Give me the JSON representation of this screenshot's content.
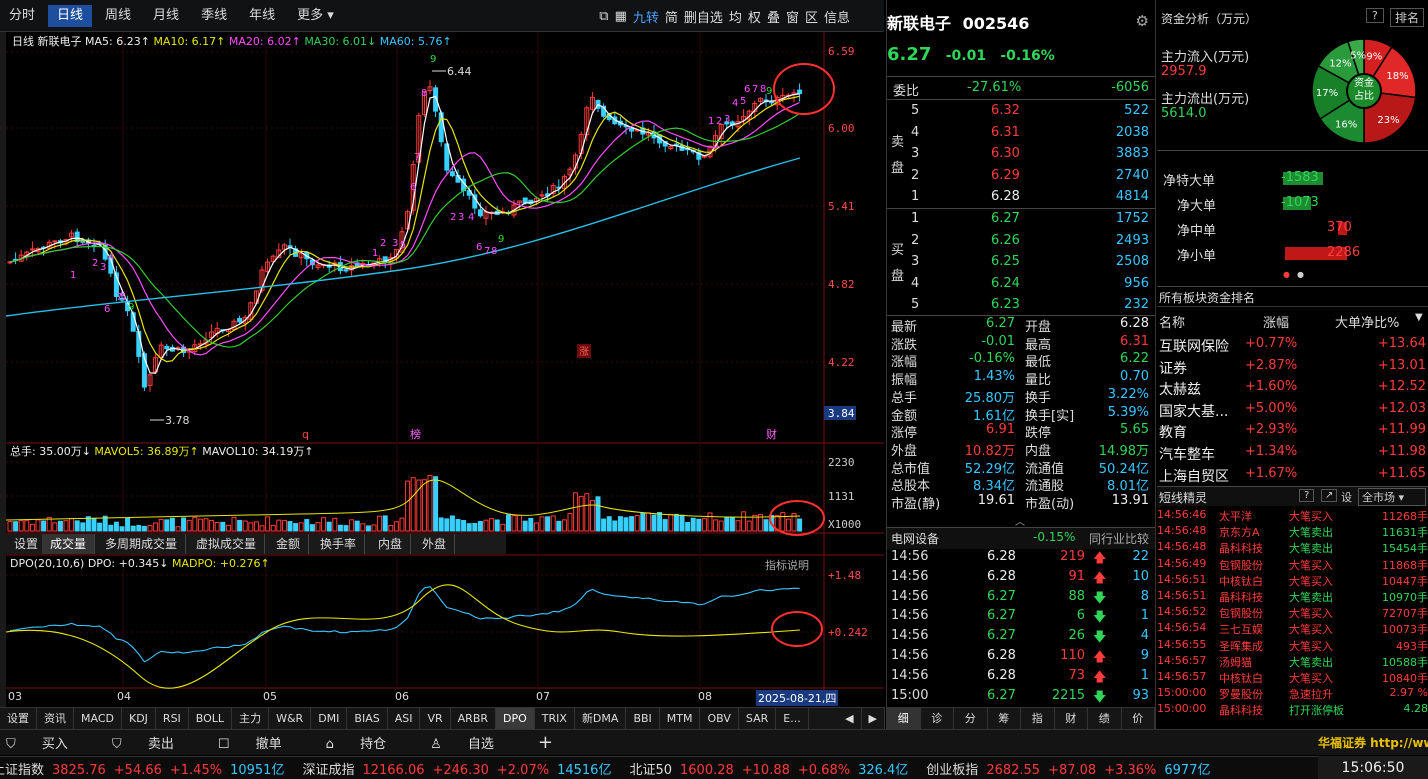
{
  "period_tabs": [
    "分时",
    "日线",
    "周线",
    "月线",
    "季线",
    "年线",
    "更多 ▾"
  ],
  "period_active": "日线",
  "period_tools": [
    "九转",
    "简",
    "删自选",
    "均",
    "权",
    "叠",
    "窗",
    "区",
    "信息"
  ],
  "main_header": {
    "label": "日线",
    "name": "新联电子",
    "ma5": "MA5: 6.23↑",
    "ma10": "MA10: 6.17↑",
    "ma20": "MA20: 6.02↑",
    "ma30": "MA30: 6.01↓",
    "ma60": "MA60: 5.76↑"
  },
  "price_ticks": [
    "6.59",
    "6.00",
    "5.41",
    "4.82",
    "4.22",
    "3.84"
  ],
  "price_high_label": "6.44",
  "price_low_label": "3.78",
  "markers": [
    "q",
    "榜",
    "财",
    "涨"
  ],
  "volume_header": {
    "total": "总手: 35.00万↓",
    "mavol5": "MAVOL5: 36.89万↑",
    "mavol10": "MAVOL10: 34.19万↑"
  },
  "volume_ticks": [
    "2230",
    "1131",
    "X1000"
  ],
  "sub_tabs": [
    "设置",
    "成交量",
    "多周期成交量",
    "虚拟成交量",
    "金额",
    "换手率",
    "内盘",
    "外盘"
  ],
  "sub_tab_active": "成交量",
  "dpo_header": {
    "label": "DPO(20,10,6) DPO: +0.345↓",
    "madpo": "MADPO: +0.276↑"
  },
  "dpo_link": "指标说明",
  "dpo_ticks": [
    "+1.48",
    "+0.242"
  ],
  "x_ticks": [
    "03",
    "04",
    "05",
    "06",
    "07",
    "08"
  ],
  "date_label": "2025-08-21,四",
  "indicator_tabs": [
    "设置",
    "资讯",
    "MACD",
    "KDJ",
    "RSI",
    "BOLL",
    "主力",
    "W&R",
    "DMI",
    "BIAS",
    "ASI",
    "VR",
    "ARBR",
    "DPO",
    "TRIX",
    "新DMA",
    "BBI",
    "MTM",
    "OBV",
    "SAR",
    "E..."
  ],
  "indicator_active": "DPO",
  "stock": {
    "name": "新联电子",
    "code": "002546",
    "price": "6.27",
    "change": "-0.01",
    "pct": "-0.16%"
  },
  "weibi": {
    "label": "委比",
    "ratio": "-27.61%",
    "diff": "-6056"
  },
  "sell_label": [
    "卖",
    "盘"
  ],
  "buy_label": [
    "买",
    "盘"
  ],
  "asks": [
    {
      "lv": "5",
      "price": "6.32",
      "vol": "522",
      "color": "#ff3b3b"
    },
    {
      "lv": "4",
      "price": "6.31",
      "vol": "2038",
      "color": "#ff3b3b"
    },
    {
      "lv": "3",
      "price": "6.30",
      "vol": "3883",
      "color": "#ff3b3b"
    },
    {
      "lv": "2",
      "price": "6.29",
      "vol": "2740",
      "color": "#ff3b3b"
    },
    {
      "lv": "1",
      "price": "6.28",
      "vol": "4814",
      "color": "#eeeeee"
    }
  ],
  "bids": [
    {
      "lv": "1",
      "price": "6.27",
      "vol": "1752"
    },
    {
      "lv": "2",
      "price": "6.26",
      "vol": "2493"
    },
    {
      "lv": "3",
      "price": "6.25",
      "vol": "2508"
    },
    {
      "lv": "4",
      "price": "6.24",
      "vol": "956"
    },
    {
      "lv": "5",
      "price": "6.23",
      "vol": "232"
    }
  ],
  "stats": [
    {
      "l1": "最新",
      "v1": "6.27",
      "c1": "#2fd65a",
      "l2": "开盘",
      "v2": "6.28",
      "c2": "#eeeeee"
    },
    {
      "l1": "涨跌",
      "v1": "-0.01",
      "c1": "#2fd65a",
      "l2": "最高",
      "v2": "6.31",
      "c2": "#ff3b3b"
    },
    {
      "l1": "涨幅",
      "v1": "-0.16%",
      "c1": "#2fd65a",
      "l2": "最低",
      "v2": "6.22",
      "c2": "#2fd65a"
    },
    {
      "l1": "振幅",
      "v1": "1.43%",
      "c1": "#38c8ff",
      "l2": "量比",
      "v2": "0.70",
      "c2": "#38c8ff"
    },
    {
      "l1": "总手",
      "v1": "25.80万",
      "c1": "#38c8ff",
      "l2": "换手",
      "v2": "3.22%",
      "c2": "#38c8ff"
    },
    {
      "l1": "金额",
      "v1": "1.61亿",
      "c1": "#38c8ff",
      "l2": "换手[实]",
      "v2": "5.39%",
      "c2": "#38c8ff"
    },
    {
      "l1": "涨停",
      "v1": "6.91",
      "c1": "#ff3b3b",
      "l2": "跌停",
      "v2": "5.65",
      "c2": "#2fd65a"
    },
    {
      "l1": "外盘",
      "v1": "10.82万",
      "c1": "#ff3b3b",
      "l2": "内盘",
      "v2": "14.98万",
      "c2": "#2fd65a"
    },
    {
      "l1": "总市值",
      "v1": "52.29亿",
      "c1": "#38c8ff",
      "l2": "流通值",
      "v2": "50.24亿",
      "c2": "#38c8ff"
    },
    {
      "l1": "总股本",
      "v1": "8.34亿",
      "c1": "#38c8ff",
      "l2": "流通股",
      "v2": "8.01亿",
      "c2": "#38c8ff"
    },
    {
      "l1": "市盈(静)",
      "v1": "19.61",
      "c1": "#eeeeee",
      "l2": "市盈(动)",
      "v2": "13.91",
      "c2": "#eeeeee"
    }
  ],
  "sector": {
    "name": "电网设备",
    "pct": "-0.15%",
    "link": "同行业比较"
  },
  "ticks": [
    {
      "t": "14:56",
      "p": "6.28",
      "pc": "#eeeeee",
      "v": "219",
      "vc": "#ff3b3b",
      "dir": "up",
      "n": "22"
    },
    {
      "t": "14:56",
      "p": "6.28",
      "pc": "#eeeeee",
      "v": "91",
      "vc": "#ff3b3b",
      "dir": "up",
      "n": "10"
    },
    {
      "t": "14:56",
      "p": "6.27",
      "pc": "#2fd65a",
      "v": "88",
      "vc": "#2fd65a",
      "dir": "down",
      "n": "8"
    },
    {
      "t": "14:56",
      "p": "6.27",
      "pc": "#2fd65a",
      "v": "6",
      "vc": "#2fd65a",
      "dir": "down",
      "n": "1"
    },
    {
      "t": "14:56",
      "p": "6.27",
      "pc": "#2fd65a",
      "v": "26",
      "vc": "#2fd65a",
      "dir": "down",
      "n": "4"
    },
    {
      "t": "14:56",
      "p": "6.28",
      "pc": "#eeeeee",
      "v": "110",
      "vc": "#ff3b3b",
      "dir": "up",
      "n": "9"
    },
    {
      "t": "14:56",
      "p": "6.28",
      "pc": "#eeeeee",
      "v": "73",
      "vc": "#ff3b3b",
      "dir": "up",
      "n": "1"
    },
    {
      "t": "15:00",
      "p": "6.27",
      "pc": "#2fd65a",
      "v": "2215",
      "vc": "#2fd65a",
      "dir": "down",
      "n": "93"
    }
  ],
  "quote_tabs": [
    "细",
    "诊",
    "分",
    "筹",
    "指",
    "财",
    "绩",
    "价"
  ],
  "fund": {
    "title": "资金分析（万元）",
    "btn_help": "?",
    "btn_rank": "排名",
    "inflow_label": "主力流入(万元)",
    "inflow": "2957.9",
    "outflow_label": "主力流出(万元)",
    "outflow": "5614.0",
    "pie_center": [
      "资金",
      "占比"
    ],
    "pie": [
      {
        "v": 9,
        "label": "9%",
        "color": "#d42020"
      },
      {
        "v": 18,
        "label": "18%",
        "color": "#e02828"
      },
      {
        "v": 23,
        "label": "23%",
        "color": "#b81818"
      },
      {
        "v": 16,
        "label": "16%",
        "color": "#1c8a30"
      },
      {
        "v": 17,
        "label": "17%",
        "color": "#188028"
      },
      {
        "v": 12,
        "label": "12%",
        "color": "#2a9a3a"
      },
      {
        "v": 5,
        "label": "5%",
        "color": "#3aaa48"
      }
    ]
  },
  "net": [
    {
      "label": "净特大单",
      "value": "-1583",
      "frac": 0.65,
      "color": "#1e8c30",
      "vc": "#2fd65a"
    },
    {
      "label": "净大单",
      "value": "-1073",
      "frac": 0.45,
      "color": "#1e8c30",
      "vc": "#2fd65a"
    },
    {
      "label": "净中单",
      "value": "370",
      "frac": 0.15,
      "color": "#c01818",
      "vc": "#ff3b3b"
    },
    {
      "label": "净小单",
      "value": "2286",
      "frac": 1.0,
      "color": "#c01818",
      "vc": "#ff3b3b"
    }
  ],
  "sector_rank": {
    "title": "所有板块资金排名",
    "headers": [
      "名称",
      "涨幅",
      "大单净比%"
    ],
    "rows": [
      {
        "name": "互联网保险",
        "pct": "+0.77%",
        "net": "+13.64"
      },
      {
        "name": "证券",
        "pct": "+2.87%",
        "net": "+13.01"
      },
      {
        "name": "太赫兹",
        "pct": "+1.60%",
        "net": "+12.52"
      },
      {
        "name": "国家大基...",
        "pct": "+5.00%",
        "net": "+12.03"
      },
      {
        "name": "教育",
        "pct": "+2.93%",
        "net": "+11.99"
      },
      {
        "name": "汽车整车",
        "pct": "+1.34%",
        "net": "+11.98"
      },
      {
        "name": "上海自贸区",
        "pct": "+1.67%",
        "net": "+11.65"
      }
    ]
  },
  "sprite": {
    "title": "短线精灵",
    "filter": "全市场",
    "rows": [
      {
        "t": "14:56:46",
        "name": "太平洋",
        "ev": "大笔买入",
        "val": "11268手",
        "c": "#ff3b3b"
      },
      {
        "t": "14:56:48",
        "name": "京东方A",
        "ev": "大笔卖出",
        "val": "11631手",
        "c": "#2fd65a"
      },
      {
        "t": "14:56:48",
        "name": "晶科科技",
        "ev": "大笔卖出",
        "val": "15454手",
        "c": "#2fd65a"
      },
      {
        "t": "14:56:49",
        "name": "包钢股份",
        "ev": "大笔买入",
        "val": "11868手",
        "c": "#ff3b3b"
      },
      {
        "t": "14:56:51",
        "name": "中核钛白",
        "ev": "大笔买入",
        "val": "10447手",
        "c": "#ff3b3b"
      },
      {
        "t": "14:56:51",
        "name": "晶科科技",
        "ev": "大笔卖出",
        "val": "10970手",
        "c": "#2fd65a"
      },
      {
        "t": "14:56:52",
        "name": "包钢股份",
        "ev": "大笔买入",
        "val": "72707手",
        "c": "#ff3b3b"
      },
      {
        "t": "14:56:54",
        "name": "三七互娱",
        "ev": "大笔买入",
        "val": "10073手",
        "c": "#ff3b3b"
      },
      {
        "t": "14:56:55",
        "name": "圣晖集成",
        "ev": "大笔买入",
        "val": "493手",
        "c": "#ff3b3b"
      },
      {
        "t": "14:56:57",
        "name": "汤姆猫",
        "ev": "大笔卖出",
        "val": "10588手",
        "c": "#2fd65a"
      },
      {
        "t": "14:56:57",
        "name": "中核钛白",
        "ev": "大笔买入",
        "val": "10840手",
        "c": "#ff3b3b"
      },
      {
        "t": "15:00:00",
        "name": "罗曼股份",
        "ev": "急速拉升",
        "val": "2.97 %",
        "c": "#ff3b3b"
      },
      {
        "t": "15:00:00",
        "name": "晶科科技",
        "ev": "打开涨停板",
        "val": "4.28",
        "c": "#2fd65a"
      }
    ]
  },
  "trade_bar": [
    "买入",
    "卖出",
    "撤单",
    "持仓",
    "自选"
  ],
  "broker": "华福证券 http://www.h",
  "ticker": [
    {
      "name": "上证指数",
      "v": "3825.76",
      "c": "+54.66",
      "p": "+1.45%",
      "a": "10951亿"
    },
    {
      "name": "深证成指",
      "v": "12166.06",
      "c": "+246.30",
      "p": "+2.07%",
      "a": "14516亿"
    },
    {
      "name": "北证50",
      "v": "1600.28",
      "c": "+10.88",
      "p": "+0.68%",
      "a": "326.4亿"
    },
    {
      "name": "创业板指",
      "v": "2682.55",
      "c": "+87.08",
      "p": "+3.36%",
      "a": "6977亿"
    }
  ],
  "clock": "15:06:50"
}
